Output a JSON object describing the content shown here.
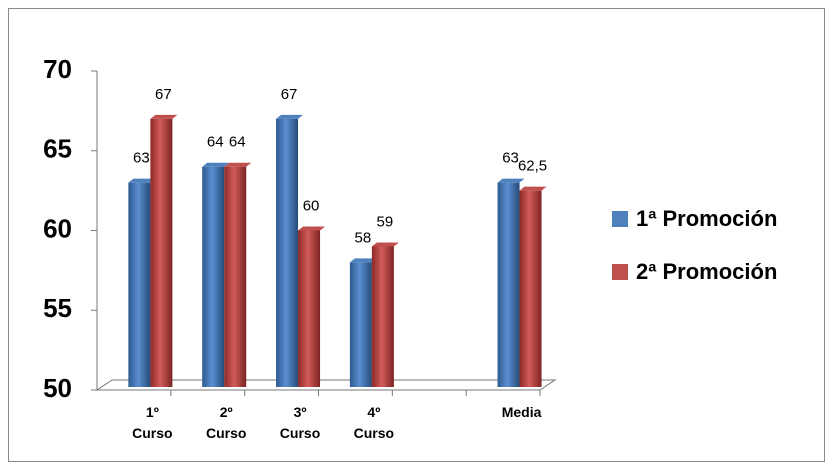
{
  "chart_data": {
    "type": "bar",
    "categories": [
      "1º Curso",
      "2º Curso",
      "3º Curso",
      "4º Curso",
      null,
      "Media"
    ],
    "series": [
      {
        "name": "1ª Promoción",
        "color": "#4f81bd",
        "values": [
          63,
          64,
          67,
          58,
          null,
          63
        ]
      },
      {
        "name": "2ª Promoción",
        "color": "#c0504d",
        "values": [
          67,
          64,
          60,
          59,
          null,
          62.5
        ],
        "value_labels": [
          "67",
          "64",
          "60",
          "59",
          null,
          "62,5"
        ]
      }
    ],
    "ylim": [
      50,
      70
    ],
    "yticks": [
      50,
      55,
      60,
      65,
      70
    ],
    "legend": "right"
  }
}
